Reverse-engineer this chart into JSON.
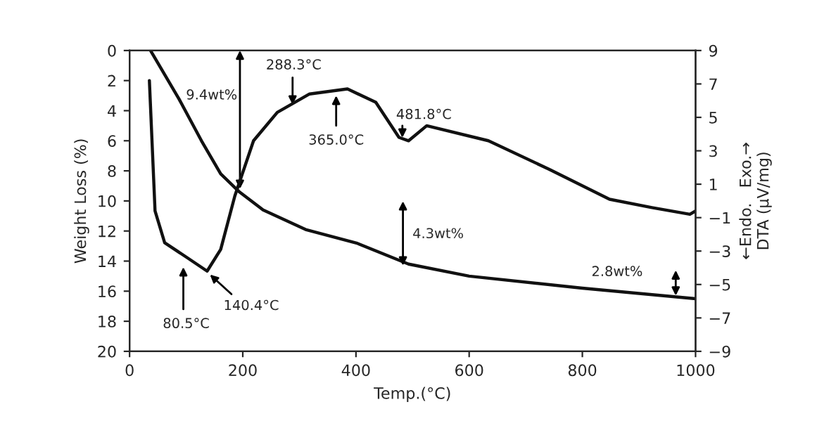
{
  "chart_data": {
    "type": "line",
    "xlabel": "Temp.(°C)",
    "ylabel": "Weight Loss (%)",
    "y2label": "←Endo.   Exo.→\nDTA (μV/mg)",
    "xlim": [
      0,
      1000
    ],
    "xticks": [
      0,
      200,
      400,
      600,
      800,
      1000
    ],
    "ylim": [
      20,
      0
    ],
    "yticks": [
      0,
      2,
      4,
      6,
      8,
      10,
      12,
      14,
      16,
      18,
      20
    ],
    "y2lim": [
      -9,
      9
    ],
    "y2ticks": [
      9,
      7,
      5,
      3,
      1,
      {
        "value": -1,
        "label": "−1"
      },
      {
        "value": -3,
        "label": "−3"
      },
      {
        "value": -5,
        "label": "−5"
      },
      {
        "value": -7,
        "label": "−7"
      },
      {
        "value": -9,
        "label": "−9"
      }
    ],
    "grid": false,
    "legend": false,
    "series": [
      {
        "color": "#111111",
        "x": [
          37,
          87,
          127,
          161,
          194,
          236,
          311,
          401,
          493,
          600,
          800,
          1000
        ],
        "values": [
          0,
          3.2,
          6.0,
          8.2,
          9.4,
          10.6,
          11.9,
          12.8,
          14.2,
          15.0,
          15.8,
          16.5
        ]
      },
      {
        "color": "#111111",
        "axis": "y2",
        "x": [
          35,
          45,
          62,
          102,
          137,
          161,
          186,
          219,
          261,
          318,
          385,
          435,
          476,
          493,
          525,
          634,
          741,
          848,
          923,
          990,
          1000
        ],
        "values": [
          7.2,
          -0.6,
          -2.5,
          -3.4,
          -4.2,
          -2.9,
          0.3,
          3.6,
          5.3,
          6.4,
          6.7,
          5.9,
          3.8,
          3.6,
          4.5,
          3.6,
          1.9,
          0.1,
          -0.4,
          -0.8,
          -0.6
        ]
      }
    ],
    "annotations": [
      "288.3°C",
      "365.0°C",
      "481.8°C",
      "140.4°C",
      "80.5°C",
      "9.4wt%",
      {
        "text": "4.3wt%",
        "x": 483,
        "y": 14.3
      },
      {
        "text": "2.8wt%",
        "x": 965,
        "y": 16.3
      }
    ]
  }
}
